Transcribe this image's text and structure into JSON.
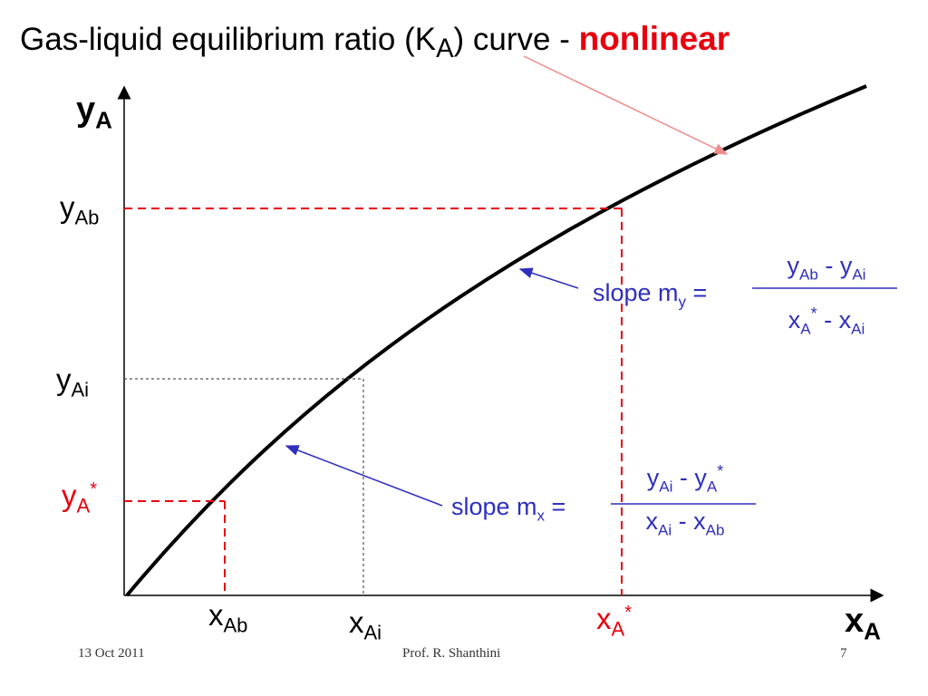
{
  "title": {
    "text": "Gas-liquid equilibrium ratio (K",
    "sub": "A",
    "tail": ") curve - ",
    "emphasis": "nonlinear"
  },
  "axes": {
    "y": {
      "main": "y",
      "sub": "A"
    },
    "x": {
      "main": "x",
      "sub": "A"
    }
  },
  "labels": {
    "y_ab": {
      "main": "y",
      "sub": "Ab"
    },
    "y_ai": {
      "main": "y",
      "sub": "Ai"
    },
    "y_a_star": {
      "main": "y",
      "sub": "A",
      "sup": "*"
    },
    "x_ab": {
      "main": "x",
      "sub": "Ab"
    },
    "x_ai": {
      "main": "x",
      "sub": "Ai"
    },
    "x_a_star": {
      "main": "x",
      "sub": "A",
      "sup": "*"
    }
  },
  "slope_my": {
    "label": "slope  m",
    "label_sub": "y",
    "eq": " =",
    "num": {
      "a": "y",
      "a_sub": "Ab",
      "op": " - y",
      "b_sub": "Ai"
    },
    "den": {
      "a": "x",
      "a_sub": "A",
      "a_sup": "*",
      "op": " - x",
      "b_sub": "Ai"
    }
  },
  "slope_mx": {
    "label": "slope  m",
    "label_sub": "x",
    "eq": " =",
    "num": {
      "a": "y",
      "a_sub": "Ai",
      "op": " - y",
      "b_sub": "A",
      "b_sup": "*"
    },
    "den": {
      "a": "x",
      "a_sub": "Ai",
      "op": " - x",
      "b_sub": "Ab"
    }
  },
  "footer": {
    "date": "13 Oct 2011",
    "author": "Prof. R. Shanthini",
    "page": "7"
  },
  "colors": {
    "curve": "#000000",
    "red": "#e8000e",
    "blue": "#2f2fbf",
    "pointer": "#ef8a8a",
    "gray": "#555555"
  }
}
